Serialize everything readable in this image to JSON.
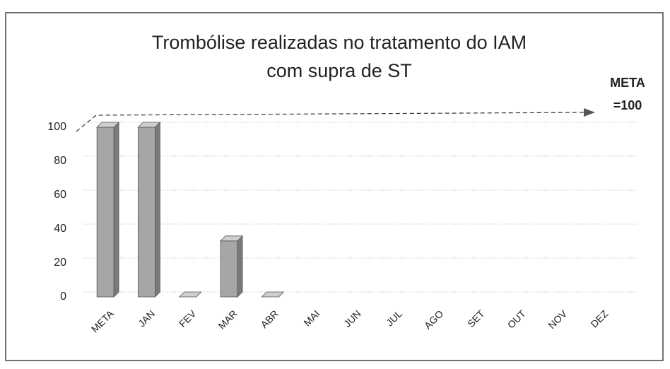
{
  "chart_data": {
    "type": "bar",
    "title": [
      "Trombólise realizadas no tratamento do IAM",
      "com supra de ST"
    ],
    "annotation": [
      "META",
      "=100"
    ],
    "categories": [
      "META",
      "JAN",
      "FEV",
      "MAR",
      "ABR",
      "MAI",
      "JUN",
      "JUL",
      "AGO",
      "SET",
      "OUT",
      "NOV",
      "DEZ"
    ],
    "values": [
      100,
      100,
      0,
      33,
      0,
      null,
      null,
      null,
      null,
      null,
      null,
      null,
      null
    ],
    "color": "#a6a6a6",
    "ylim": [
      0,
      100
    ],
    "yticks": [
      0,
      20,
      40,
      60,
      80,
      100
    ],
    "grid": true
  }
}
